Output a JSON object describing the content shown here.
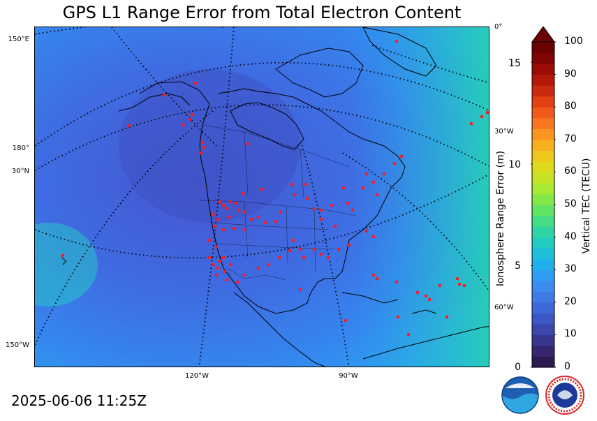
{
  "title": "GPS L1 Range Error from Total Electron Content",
  "timestamp": "2025-06-06 11:25Z",
  "grid_labels": {
    "left": [
      "150°E",
      "180°",
      "30°N",
      "150°W"
    ],
    "right": [
      "0°",
      "30°W",
      "60°W"
    ],
    "bottom": [
      "120°W",
      "90°W"
    ]
  },
  "colorbar": {
    "left_label": "Ionosphere Range Error (m)",
    "left_ticks": [
      "0",
      "5",
      "10",
      "15"
    ],
    "right_label": "Vertical TEC (TECU)",
    "right_ticks": [
      "0",
      "10",
      "20",
      "30",
      "40",
      "50",
      "60",
      "70",
      "80",
      "90",
      "100"
    ],
    "colors": [
      "#2d1a4f",
      "#35266e",
      "#3a3690",
      "#3c47ad",
      "#3d58c6",
      "#3e6ad9",
      "#3f7be6",
      "#3a8cef",
      "#2f9ef2",
      "#22b0ec",
      "#1ec0d9",
      "#22ccc0",
      "#2fd6a3",
      "#45de84",
      "#63e464",
      "#86e847",
      "#a8e932",
      "#c6e424",
      "#deda1e",
      "#efc81c",
      "#f8b01e",
      "#fc9420",
      "#f97620",
      "#ef5a1a",
      "#e04014",
      "#cc2a0e",
      "#b51809",
      "#9a0c05",
      "#7f0403",
      "#6b0102"
    ],
    "extend_color": "#6b0102"
  },
  "stations_count_note": ""
}
